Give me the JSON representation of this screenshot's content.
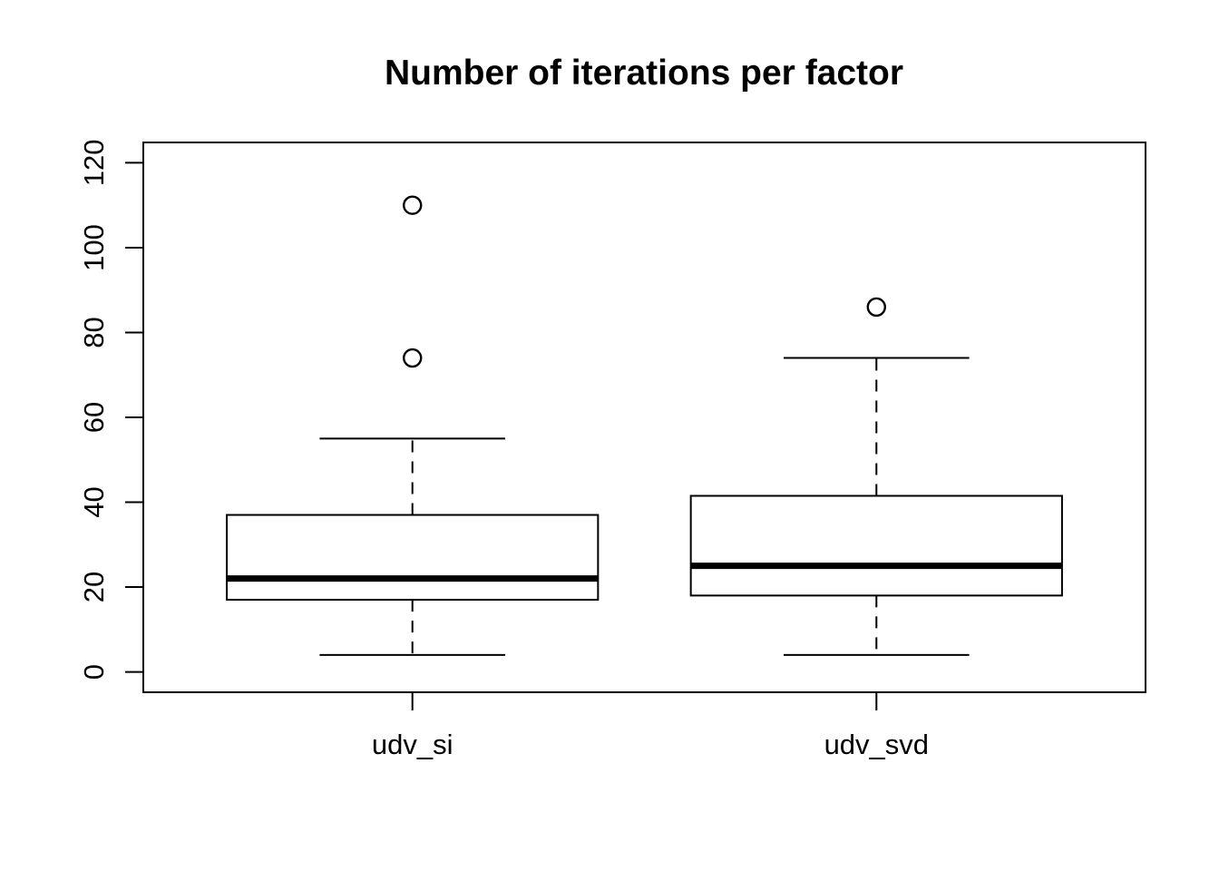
{
  "chart_data": {
    "type": "boxplot",
    "title": "Number of iterations per factor",
    "categories": [
      "udv_si",
      "udv_svd"
    ],
    "series": [
      {
        "name": "udv_si",
        "whisker_low": 4,
        "q1": 17,
        "median": 22,
        "q3": 37,
        "whisker_high": 55,
        "outliers": [
          74,
          110
        ]
      },
      {
        "name": "udv_svd",
        "whisker_low": 4,
        "q1": 18,
        "median": 25,
        "q3": 41.5,
        "whisker_high": 74,
        "outliers": [
          86
        ]
      }
    ],
    "xlabel": "",
    "ylabel": "",
    "yticks": [
      0,
      20,
      40,
      60,
      80,
      100,
      120
    ],
    "ylim": [
      0,
      120
    ],
    "grid": false,
    "legend": "none",
    "stroke_color": "#000000",
    "background_color": "#ffffff"
  }
}
